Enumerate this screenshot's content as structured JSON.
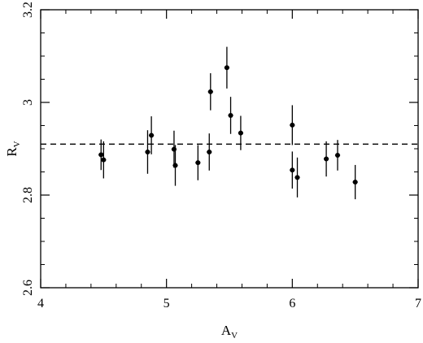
{
  "chart_data": {
    "type": "scatter",
    "title": "",
    "xlabel": {
      "main": "A",
      "sub": "V"
    },
    "ylabel": {
      "main": "R",
      "sub": "V"
    },
    "xlim": [
      4,
      7
    ],
    "ylim": [
      2.6,
      3.2
    ],
    "xticks": [
      4,
      5,
      6,
      7
    ],
    "yticks": [
      2.6,
      2.8,
      3,
      3.2
    ],
    "xtick_labels": [
      "4",
      "5",
      "6",
      "7"
    ],
    "ytick_labels": [
      "2.6",
      "2.8",
      "3",
      "3.2"
    ],
    "x_minor_step": 0.2,
    "y_minor_step": 0.05,
    "reference_line": {
      "y": 2.91,
      "style": "dashed"
    },
    "grid": false,
    "legend": "none",
    "points": [
      {
        "x": 4.48,
        "y": 2.887,
        "yerr": 0.033,
        "xerr": 0.02
      },
      {
        "x": 4.5,
        "y": 2.876,
        "yerr": 0.04,
        "xerr": 0.02
      },
      {
        "x": 4.85,
        "y": 2.893,
        "yerr": 0.047,
        "xerr": 0.02
      },
      {
        "x": 4.88,
        "y": 2.929,
        "yerr": 0.041,
        "xerr": 0.02
      },
      {
        "x": 5.06,
        "y": 2.899,
        "yerr": 0.04,
        "xerr": 0.02
      },
      {
        "x": 5.07,
        "y": 2.864,
        "yerr": 0.044,
        "xerr": 0.02
      },
      {
        "x": 5.25,
        "y": 2.87,
        "yerr": 0.038,
        "xerr": 0.02
      },
      {
        "x": 5.34,
        "y": 2.893,
        "yerr": 0.04,
        "xerr": 0.02
      },
      {
        "x": 5.35,
        "y": 3.023,
        "yerr": 0.04,
        "xerr": 0.02
      },
      {
        "x": 5.48,
        "y": 3.075,
        "yerr": 0.045,
        "xerr": 0.02
      },
      {
        "x": 5.51,
        "y": 2.972,
        "yerr": 0.04,
        "xerr": 0.02
      },
      {
        "x": 5.59,
        "y": 2.934,
        "yerr": 0.037,
        "xerr": 0.02
      },
      {
        "x": 6.0,
        "y": 2.951,
        "yerr": 0.043,
        "xerr": 0.02
      },
      {
        "x": 6.0,
        "y": 2.854,
        "yerr": 0.04,
        "xerr": 0.02
      },
      {
        "x": 6.04,
        "y": 2.838,
        "yerr": 0.043,
        "xerr": 0.02
      },
      {
        "x": 6.27,
        "y": 2.878,
        "yerr": 0.038,
        "xerr": 0.02
      },
      {
        "x": 6.36,
        "y": 2.886,
        "yerr": 0.033,
        "xerr": 0.02
      },
      {
        "x": 6.5,
        "y": 2.828,
        "yerr": 0.037,
        "xerr": 0.02
      }
    ]
  }
}
